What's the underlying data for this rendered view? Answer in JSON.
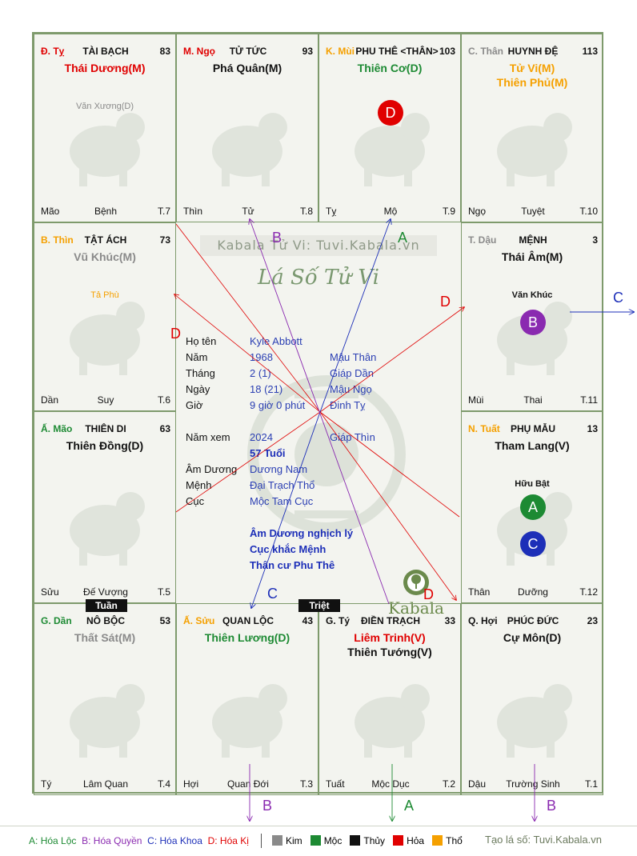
{
  "watermark": "Kabala Tử Vi: Tuvi.Kabala.vn",
  "center_title": "Lá Số Tử Vi",
  "palaces": [
    {
      "can": "Đ. Tỵ",
      "name": "TÀI BẠCH",
      "num": "83",
      "majors": [
        "Thái Dương(M)"
      ],
      "minors": [
        "Văn Xương(D)"
      ],
      "chi": "Mão",
      "stage": "Bệnh",
      "month": "T.7"
    },
    {
      "can": "M. Ngọ",
      "name": "TỬ TỨC",
      "num": "93",
      "majors": [
        "Phá Quân(M)"
      ],
      "minors": [],
      "chi": "Thìn",
      "stage": "Tử",
      "month": "T.8"
    },
    {
      "can": "K. Mùi",
      "name": "PHU THÊ <THÂN>",
      "num": "103",
      "majors": [
        "Thiên Cơ(D)"
      ],
      "minors": [],
      "chi": "Tỵ",
      "stage": "Mộ",
      "month": "T.9",
      "dots": [
        "D"
      ]
    },
    {
      "can": "C. Thân",
      "name": "HUYNH ĐỆ",
      "num": "113",
      "majors": [
        "Tử Vi(M)",
        "Thiên Phủ(M)"
      ],
      "minors": [],
      "chi": "Ngọ",
      "stage": "Tuyệt",
      "month": "T.10"
    },
    {
      "can": "B. Thìn",
      "name": "TẬT ÁCH",
      "num": "73",
      "majors": [
        "Vũ Khúc(M)"
      ],
      "minors": [
        "Tả Phù"
      ],
      "chi": "Dần",
      "stage": "Suy",
      "month": "T.6"
    },
    {
      "can": "T. Dậu",
      "name": "MỆNH",
      "num": "3",
      "majors": [
        "Thái Âm(M)"
      ],
      "minors": [
        "Văn Khúc"
      ],
      "chi": "Mùi",
      "stage": "Thai",
      "month": "T.11",
      "dots": [
        "B"
      ]
    },
    {
      "can": "Ấ. Mão",
      "name": "THIÊN DI",
      "num": "63",
      "majors": [
        "Thiên Đồng(D)"
      ],
      "minors": [],
      "chi": "Sửu",
      "stage": "Đế Vượng",
      "month": "T.5"
    },
    {
      "can": "N. Tuất",
      "name": "PHỤ MẪU",
      "num": "13",
      "majors": [
        "Tham Lang(V)"
      ],
      "minors": [
        "Hữu Bật"
      ],
      "chi": "Thân",
      "stage": "Dưỡng",
      "month": "T.12",
      "dots": [
        "A",
        "C"
      ]
    },
    {
      "can": "G. Dần",
      "name": "NÔ BỘC",
      "num": "53",
      "majors": [
        "Thất Sát(M)"
      ],
      "minors": [],
      "chi": "Tý",
      "stage": "Lâm Quan",
      "month": "T.4"
    },
    {
      "can": "Ấ. Sửu",
      "name": "QUAN LỘC",
      "num": "43",
      "majors": [
        "Thiên Lương(D)"
      ],
      "minors": [],
      "chi": "Hợi",
      "stage": "Quan Đới",
      "month": "T.3"
    },
    {
      "can": "G. Tý",
      "name": "ĐIỀN TRẠCH",
      "num": "33",
      "majors": [
        "Liêm Trinh(V)",
        "Thiên Tướng(V)"
      ],
      "minors": [],
      "chi": "Tuất",
      "stage": "Mộc Dục",
      "month": "T.2"
    },
    {
      "can": "Q. Hợi",
      "name": "PHÚC ĐỨC",
      "num": "23",
      "majors": [
        "Cự Môn(D)"
      ],
      "minors": [],
      "chi": "Dậu",
      "stage": "Trường Sinh",
      "month": "T.1"
    }
  ],
  "info": {
    "ho_ten_label": "Họ tên",
    "ho_ten": "Kyle Abbott",
    "nam_label": "Năm",
    "nam": "1968",
    "nam_cc": "Mậu Thân",
    "thang_label": "Tháng",
    "thang": "2  (1)",
    "thang_cc": "Giáp Dần",
    "ngay_label": "Ngày",
    "ngay": "18  (21)",
    "ngay_cc": "Mậu Ngọ",
    "gio_label": "Giờ",
    "gio": "9 giờ 0 phút",
    "gio_cc": "Đinh Tỵ",
    "namxem_label": "Năm xem",
    "namxem": "2024",
    "namxem_cc": "Giáp Thìn",
    "tuoi": "57 Tuổi",
    "amduong_label": "Âm Dương",
    "amduong": "Dương Nam",
    "menh_label": "Mệnh",
    "menh": "Đại Trạch Thổ",
    "cuc_label": "Cục",
    "cuc": "Mộc Tam Cục",
    "note1": "Âm Dương nghịch lý",
    "note2": "Cục khắc Mệnh",
    "note3": "Thân cư Phu Thê"
  },
  "badges": {
    "tuan": "Tuần",
    "triet": "Triệt"
  },
  "brand": "Kabala",
  "arrow_labels": {
    "a": "A",
    "b": "B",
    "c": "C",
    "d": "D"
  },
  "legend": {
    "a_key": "A",
    "a": "Hóa Lộc",
    "b_key": "B",
    "b": "Hóa Quyền",
    "c_key": "C",
    "c": "Hóa Khoa",
    "d_key": "D",
    "d": "Hóa Kị",
    "kim": "Kim",
    "moc": "Mộc",
    "thuy": "Thủy",
    "hoa": "Hỏa",
    "tho": "Thổ",
    "site": "Tạo lá số: Tuvi.Kabala.vn"
  },
  "colors": {
    "kim": "#8a8a8a",
    "moc": "#1d8a33",
    "thuy": "#111111",
    "hoa": "#e00000",
    "tho": "#f5a000",
    "border": "#7e9a6c"
  }
}
